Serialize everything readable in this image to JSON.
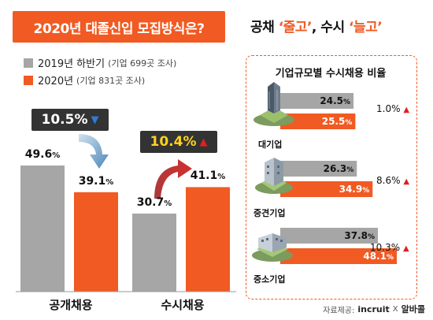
{
  "title": "2020년 대졸신입 모집방식은?",
  "headline": {
    "part1": "공채 ",
    "q1_open": "‘",
    "word1": "줄고",
    "q1_close": "’",
    "part2": ", 수시 ",
    "q2_open": "‘",
    "word2": "늘고",
    "q2_close": "’"
  },
  "legend": [
    {
      "label": "2019년 하반기",
      "note": "(기업 699곳 조사)",
      "color": "#a6a6a6"
    },
    {
      "label": "2020년",
      "note": "(기업 831곳 조사)",
      "color": "#f15a22"
    }
  ],
  "colors": {
    "prev": "#a6a6a6",
    "curr": "#f15a22",
    "accent": "#f15a22",
    "dark": "#333333",
    "up": "#e02020",
    "down": "#2f7bd6"
  },
  "chart_data": [
    {
      "type": "bar",
      "categories": [
        "공개채용",
        "수시채용"
      ],
      "series": [
        {
          "name": "2019년 하반기",
          "values": [
            49.6,
            30.7
          ]
        },
        {
          "name": "2020년",
          "values": [
            39.1,
            41.1
          ]
        }
      ],
      "value_labels": {
        "prev": [
          "49.6",
          "30.7"
        ],
        "curr": [
          "39.1",
          "41.1"
        ]
      },
      "unit": "%",
      "ylim": [
        0,
        60
      ],
      "changes": [
        {
          "text": "10.5%",
          "direction": "down",
          "icon": "down-triangle-icon"
        },
        {
          "text": "10.4%",
          "direction": "up",
          "icon": "up-triangle-icon"
        }
      ]
    },
    {
      "type": "bar",
      "title": "기업규모별 수시채용 비율",
      "categories": [
        "대기업",
        "중견기업",
        "중소기업"
      ],
      "series": [
        {
          "name": "2019년 하반기",
          "values": [
            24.5,
            26.3,
            37.8
          ]
        },
        {
          "name": "2020년",
          "values": [
            25.5,
            34.9,
            48.1
          ]
        }
      ],
      "value_labels": {
        "prev": [
          "24.5",
          "26.3",
          "37.8"
        ],
        "curr": [
          "25.5",
          "34.9",
          "48.1"
        ]
      },
      "unit": "%",
      "orientation": "horizontal",
      "xlim": [
        0,
        50
      ],
      "changes": [
        "1.0%",
        "8.6%",
        "10.3%"
      ]
    }
  ],
  "source": {
    "label": "자료제공:",
    "brand1": "incruit",
    "x": "X",
    "brand2": "알바콜"
  }
}
